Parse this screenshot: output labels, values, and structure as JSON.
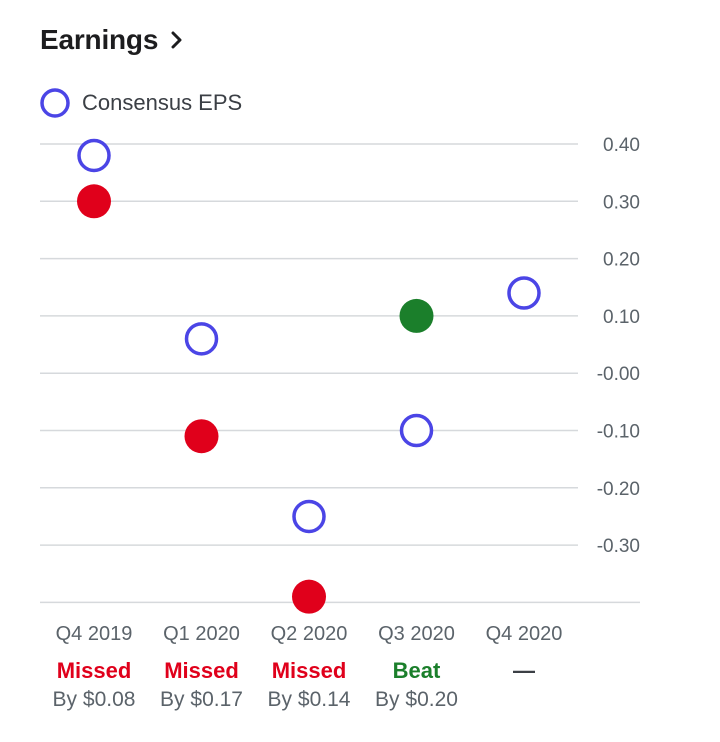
{
  "header": {
    "title": "Earnings",
    "chevron_icon": "chevron-right-icon"
  },
  "legend": {
    "label": "Consensus EPS",
    "marker_icon": "hollow-circle-icon"
  },
  "colors": {
    "consensus": "#4b45e6",
    "missed": "#e0001b",
    "beat": "#1b7f2b",
    "grid": "#d6d9dc"
  },
  "chart_data": {
    "type": "scatter",
    "categories": [
      "Q4 2019",
      "Q1 2020",
      "Q2 2020",
      "Q3 2020",
      "Q4 2020"
    ],
    "series": [
      {
        "name": "Consensus EPS",
        "values": [
          0.38,
          0.06,
          -0.25,
          -0.1,
          0.14
        ]
      },
      {
        "values": [
          0.3,
          -0.11,
          -0.39,
          0.1,
          null
        ]
      }
    ],
    "yticks": [
      "0.40",
      "0.30",
      "0.20",
      "0.10",
      "-0.00",
      "-0.10",
      "-0.20",
      "-0.30"
    ],
    "ylim": [
      -0.4,
      0.4
    ],
    "results": [
      {
        "status": "Missed",
        "kind": "missed",
        "diff": "By $0.08"
      },
      {
        "status": "Missed",
        "kind": "missed",
        "diff": "By $0.17"
      },
      {
        "status": "Missed",
        "kind": "missed",
        "diff": "By $0.14"
      },
      {
        "status": "Beat",
        "kind": "beat",
        "diff": "By $0.20"
      },
      {
        "status": "—",
        "kind": "none",
        "diff": ""
      }
    ]
  }
}
